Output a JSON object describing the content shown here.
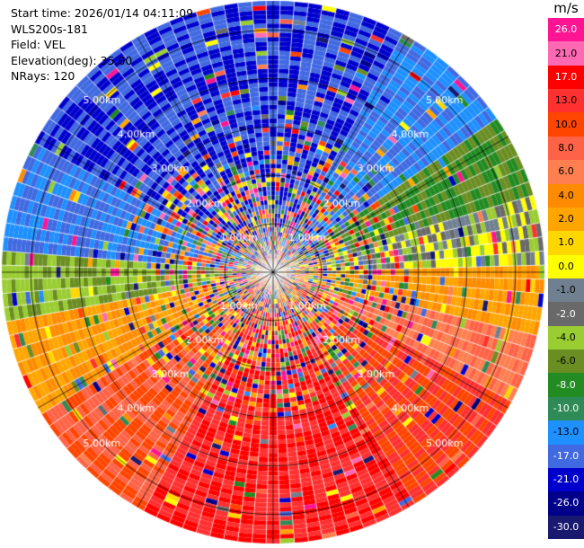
{
  "header": {
    "start_time": "Start time: 2026/01/14 04:11:09",
    "instrument": "WLS200s-181",
    "field": "Field: VEL",
    "elevation": "Elevation(deg): 35.00",
    "nrays": "NRays: 120"
  },
  "colorbar": {
    "unit": "m/s",
    "levels": [
      "26.0",
      "21.0",
      "17.0",
      "13.0",
      "10.0",
      "8.0",
      "6.0",
      "4.0",
      "2.0",
      "1.0",
      "0.0",
      "-1.0",
      "-2.0",
      "-4.0",
      "-6.0",
      "-8.0",
      "-10.0",
      "-13.0",
      "-17.0",
      "-21.0",
      "-26.0",
      "-30.0"
    ],
    "colors": [
      "#ff1493",
      "#ff69b4",
      "#ff0000",
      "#ff3030",
      "#ff4500",
      "#ff6347",
      "#ff7f50",
      "#ff8c00",
      "#ffa500",
      "#ffd700",
      "#ffff00",
      "#708090",
      "#696969",
      "#9acd32",
      "#6b8e23",
      "#228b22",
      "#2e8b57",
      "#1e90ff",
      "#4169e1",
      "#0000cd",
      "#00008b",
      "#191970"
    ]
  },
  "chart_data": {
    "type": "heatmap",
    "subtype": "polar-ppi",
    "title": "",
    "n_rays": 120,
    "range_ring_labels": [
      "1.00km",
      "2.00km",
      "3.00km",
      "4.00km",
      "5.00km"
    ],
    "range_rings_km": [
      1,
      2,
      3,
      4,
      5
    ],
    "max_range_km": 5.6,
    "value_unit": "m/s",
    "vmin": -30.0,
    "vmax": 26.0,
    "pattern": {
      "description": "Radial velocity PPI: negative (blue) on upper-left half, positive (red/orange) on lower-right half, noisy mixed values near the center",
      "dominant_sectors_deg": [
        {
          "from": 300,
          "to": 360,
          "value": -17.0
        },
        {
          "from": 0,
          "to": 30,
          "value": -17.0
        },
        {
          "from": 30,
          "to": 55,
          "value": -13.0
        },
        {
          "from": 55,
          "to": 75,
          "value": -6.0
        },
        {
          "from": 75,
          "to": 90,
          "value": -1.0
        },
        {
          "from": 90,
          "to": 105,
          "value": 4.0
        },
        {
          "from": 105,
          "to": 120,
          "value": 8.0
        },
        {
          "from": 120,
          "to": 150,
          "value": 13.0
        },
        {
          "from": 150,
          "to": 210,
          "value": 17.0
        },
        {
          "from": 210,
          "to": 240,
          "value": 10.0
        },
        {
          "from": 240,
          "to": 260,
          "value": 4.0
        },
        {
          "from": 260,
          "to": 275,
          "value": -4.0
        },
        {
          "from": 275,
          "to": 300,
          "value": -13.0
        }
      ]
    }
  }
}
